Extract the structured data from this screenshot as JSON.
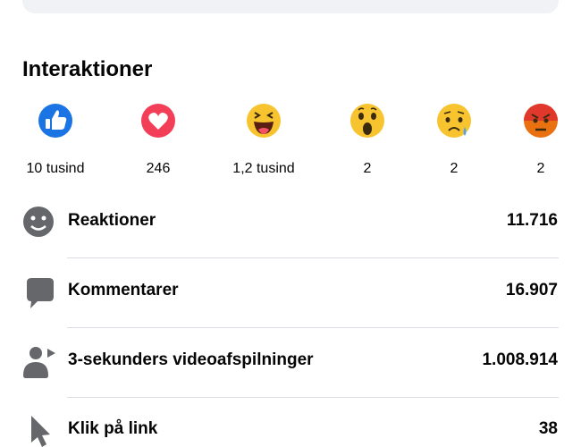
{
  "section": {
    "title": "Interaktioner",
    "reactions": [
      "10 tusind",
      "246",
      "1,2 tusind",
      "2",
      "2",
      "2"
    ],
    "rows": [
      {
        "label": "Reaktioner",
        "value": "11.716"
      },
      {
        "label": "Kommentarer",
        "value": "16.907"
      },
      {
        "label": "3-sekunders videoafspilninger",
        "value": "1.008.914"
      },
      {
        "label": "Klik på link",
        "value": "38"
      }
    ]
  }
}
